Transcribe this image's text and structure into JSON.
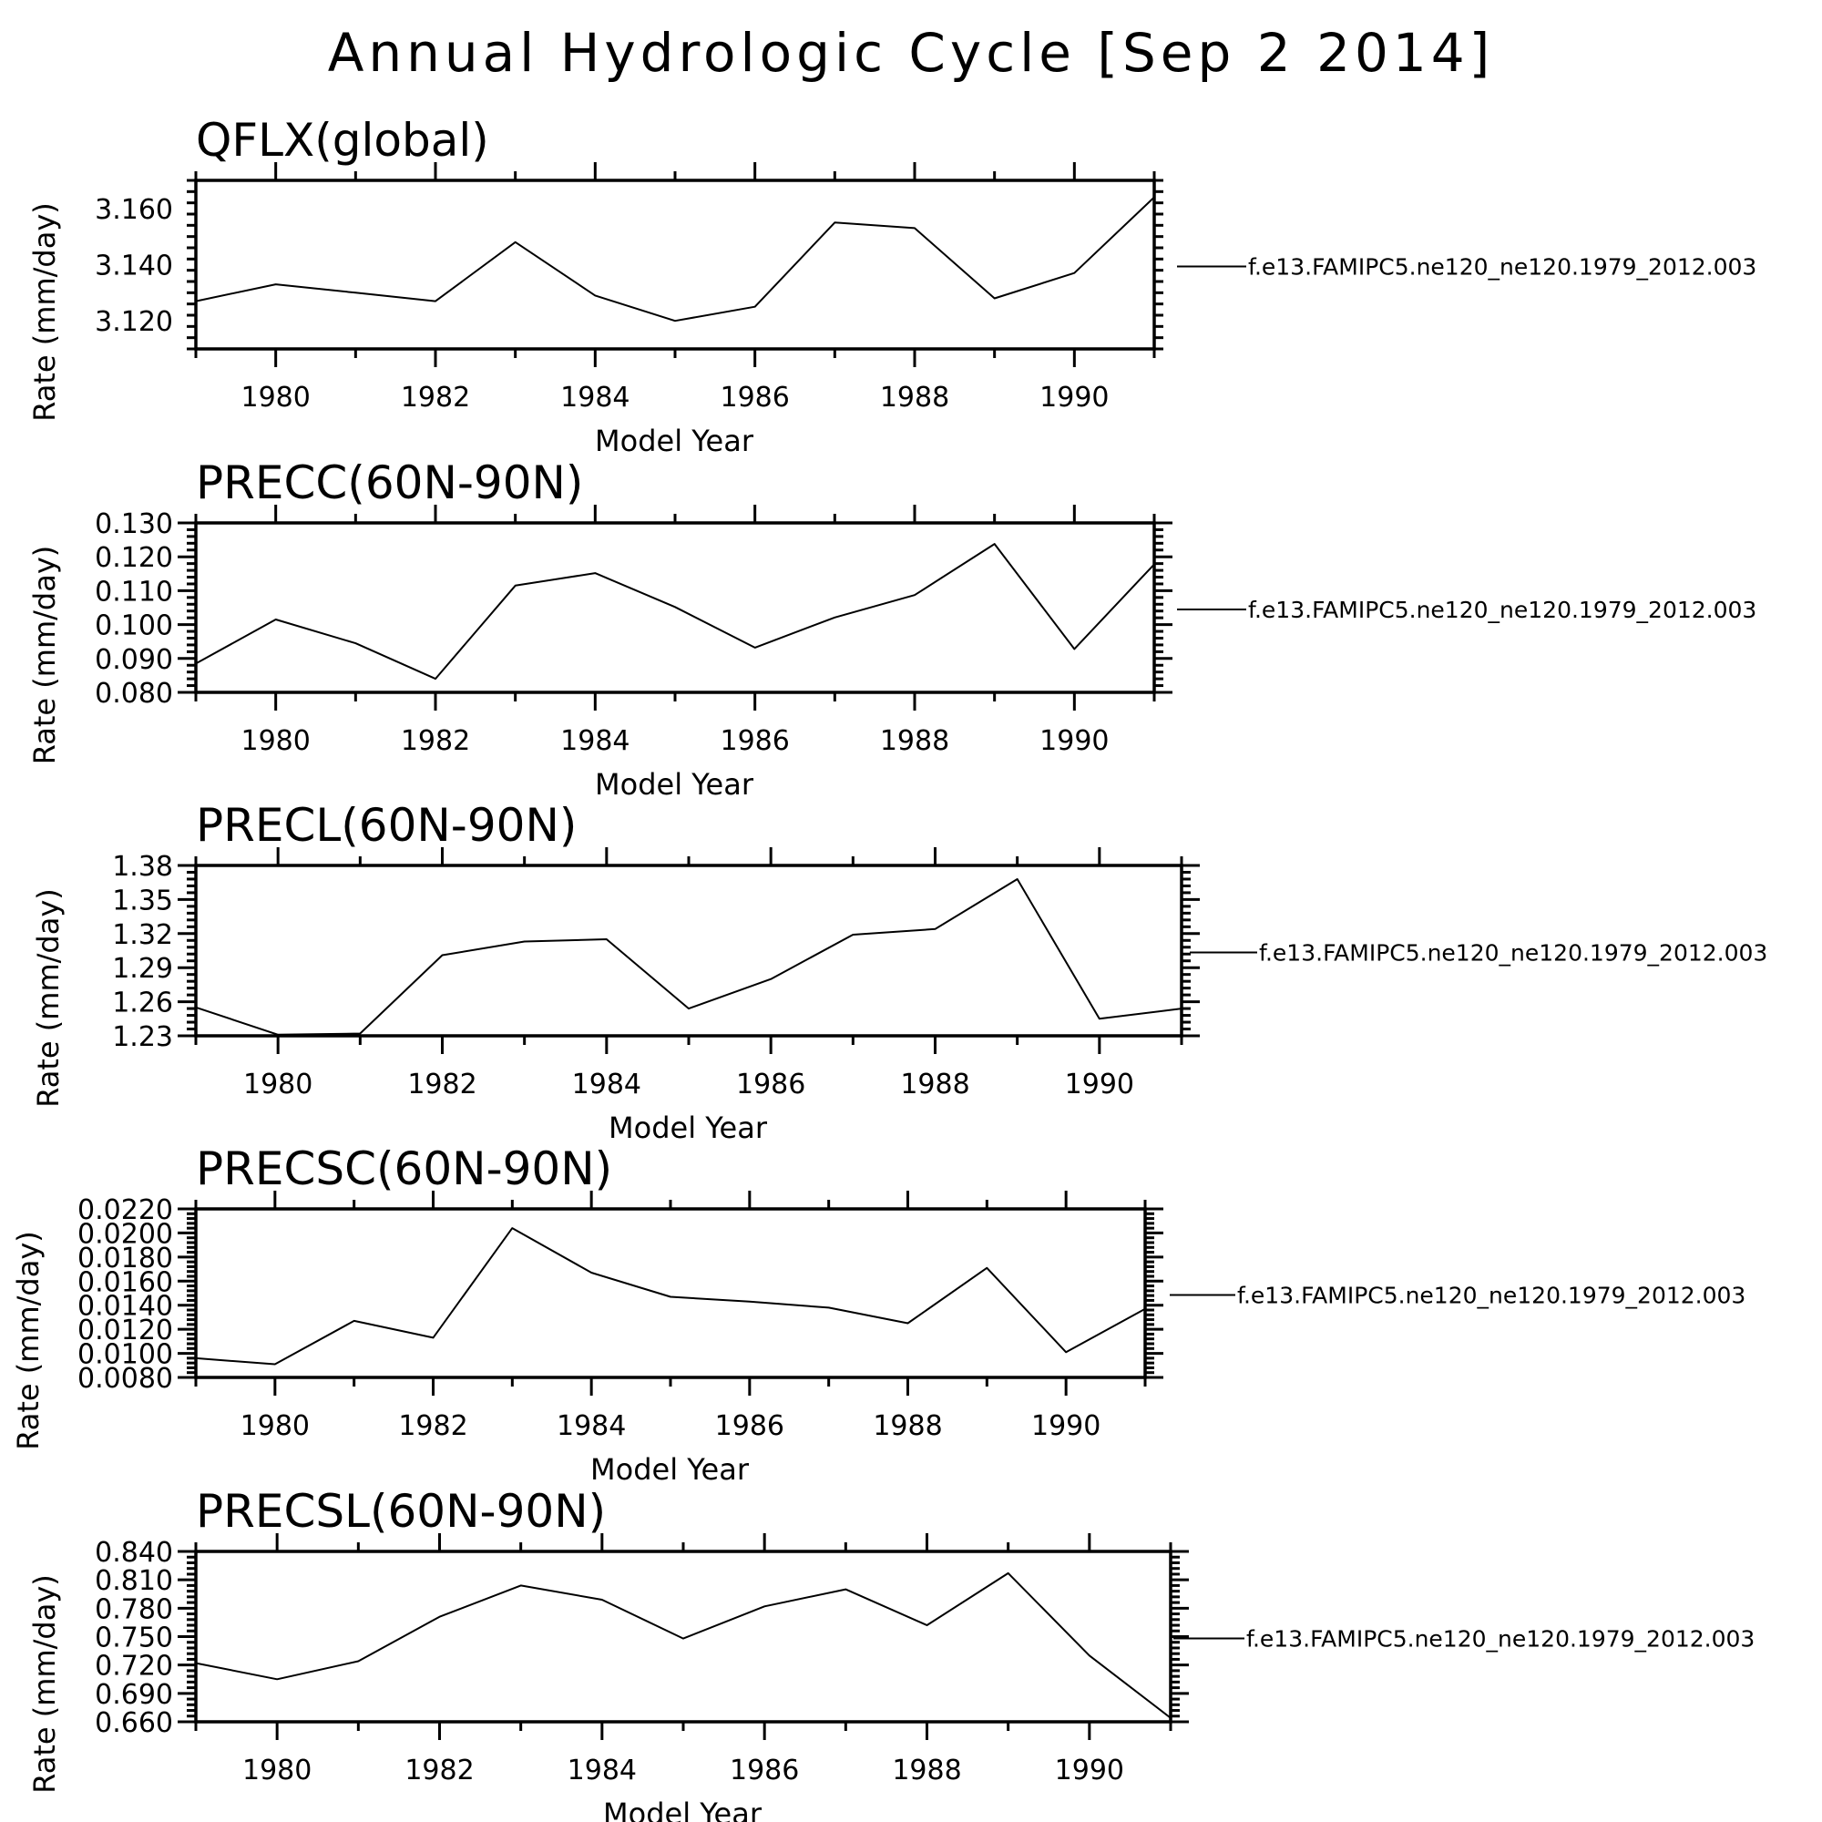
{
  "title": "Annual Hydrologic Cycle [Sep  2 2014]",
  "colors": {
    "line": "#000000",
    "background": "#ffffff"
  },
  "chart_data": [
    {
      "type": "line",
      "title": "QFLX(global)",
      "xlabel": "Model Year",
      "ylabel": "Rate (mm/day)",
      "xlim": [
        1979,
        1991
      ],
      "ylim": [
        3.11,
        3.17
      ],
      "x": [
        1979,
        1980,
        1981,
        1982,
        1983,
        1984,
        1985,
        1986,
        1987,
        1988,
        1989,
        1990,
        1991
      ],
      "xticks": [
        "1980",
        "1982",
        "1984",
        "1986",
        "1988",
        "1990"
      ],
      "yticks": [
        "3.120",
        "3.140",
        "3.160"
      ],
      "series": [
        {
          "name": "f.e13.FAMIPC5.ne120_ne120.1979_2012.003",
          "values": [
            3.127,
            3.133,
            3.13,
            3.127,
            3.148,
            3.129,
            3.12,
            3.125,
            3.155,
            3.153,
            3.128,
            3.137,
            3.164
          ]
        }
      ],
      "legend_position": "right"
    },
    {
      "type": "line",
      "title": "PRECC(60N-90N)",
      "xlabel": "Model Year",
      "ylabel": "Rate (mm/day)",
      "xlim": [
        1979,
        1991
      ],
      "ylim": [
        0.08,
        0.13
      ],
      "x": [
        1979,
        1980,
        1981,
        1982,
        1983,
        1984,
        1985,
        1986,
        1987,
        1988,
        1989,
        1990,
        1991
      ],
      "xticks": [
        "1980",
        "1982",
        "1984",
        "1986",
        "1988",
        "1990"
      ],
      "yticks": [
        "0.080",
        "0.090",
        "0.100",
        "0.110",
        "0.120",
        "0.130"
      ],
      "series": [
        {
          "name": "f.e13.FAMIPC5.ne120_ne120.1979_2012.003",
          "values": [
            0.0885,
            0.1015,
            0.0945,
            0.084,
            0.1115,
            0.1152,
            0.1052,
            0.0932,
            0.1021,
            0.1087,
            0.1238,
            0.0928,
            0.1178
          ]
        }
      ],
      "legend_position": "right"
    },
    {
      "type": "line",
      "title": "PRECL(60N-90N)",
      "xlabel": "Model Year",
      "ylabel": "Rate (mm/day)",
      "xlim": [
        1979,
        1991
      ],
      "ylim": [
        1.23,
        1.38
      ],
      "x": [
        1979,
        1980,
        1981,
        1982,
        1983,
        1984,
        1985,
        1986,
        1987,
        1988,
        1989,
        1990,
        1991
      ],
      "xticks": [
        "1980",
        "1982",
        "1984",
        "1986",
        "1988",
        "1990"
      ],
      "yticks": [
        "1.23",
        "1.26",
        "1.29",
        "1.32",
        "1.35",
        "1.38"
      ],
      "series": [
        {
          "name": "f.e13.FAMIPC5.ne120_ne120.1979_2012.003",
          "values": [
            1.255,
            1.231,
            1.232,
            1.301,
            1.313,
            1.315,
            1.254,
            1.28,
            1.319,
            1.324,
            1.368,
            1.245,
            1.254
          ]
        }
      ],
      "legend_position": "right"
    },
    {
      "type": "line",
      "title": "PRECSC(60N-90N)",
      "xlabel": "Model Year",
      "ylabel": "Rate (mm/day)",
      "xlim": [
        1979,
        1991
      ],
      "ylim": [
        0.008,
        0.022
      ],
      "x": [
        1979,
        1980,
        1981,
        1982,
        1983,
        1984,
        1985,
        1986,
        1987,
        1988,
        1989,
        1990,
        1991
      ],
      "xticks": [
        "1980",
        "1982",
        "1984",
        "1986",
        "1988",
        "1990"
      ],
      "yticks": [
        "0.0080",
        "0.0100",
        "0.0120",
        "0.0140",
        "0.0160",
        "0.0180",
        "0.0200",
        "0.0220"
      ],
      "series": [
        {
          "name": "f.e13.FAMIPC5.ne120_ne120.1979_2012.003",
          "values": [
            0.0096,
            0.0091,
            0.0127,
            0.0113,
            0.0204,
            0.0167,
            0.0147,
            0.0143,
            0.0138,
            0.0125,
            0.0171,
            0.0101,
            0.0137
          ]
        }
      ],
      "legend_position": "right"
    },
    {
      "type": "line",
      "title": "PRECSL(60N-90N)",
      "xlabel": "Model Year",
      "ylabel": "Rate (mm/day)",
      "xlim": [
        1979,
        1991
      ],
      "ylim": [
        0.66,
        0.84
      ],
      "x": [
        1979,
        1980,
        1981,
        1982,
        1983,
        1984,
        1985,
        1986,
        1987,
        1988,
        1989,
        1990,
        1991
      ],
      "xticks": [
        "1980",
        "1982",
        "1984",
        "1986",
        "1988",
        "1990"
      ],
      "yticks": [
        "0.660",
        "0.690",
        "0.720",
        "0.750",
        "0.780",
        "0.810",
        "0.840"
      ],
      "series": [
        {
          "name": "f.e13.FAMIPC5.ne120_ne120.1979_2012.003",
          "values": [
            0.722,
            0.705,
            0.724,
            0.771,
            0.804,
            0.789,
            0.748,
            0.782,
            0.8,
            0.762,
            0.817,
            0.73,
            0.664
          ]
        }
      ],
      "legend_position": "right"
    }
  ]
}
